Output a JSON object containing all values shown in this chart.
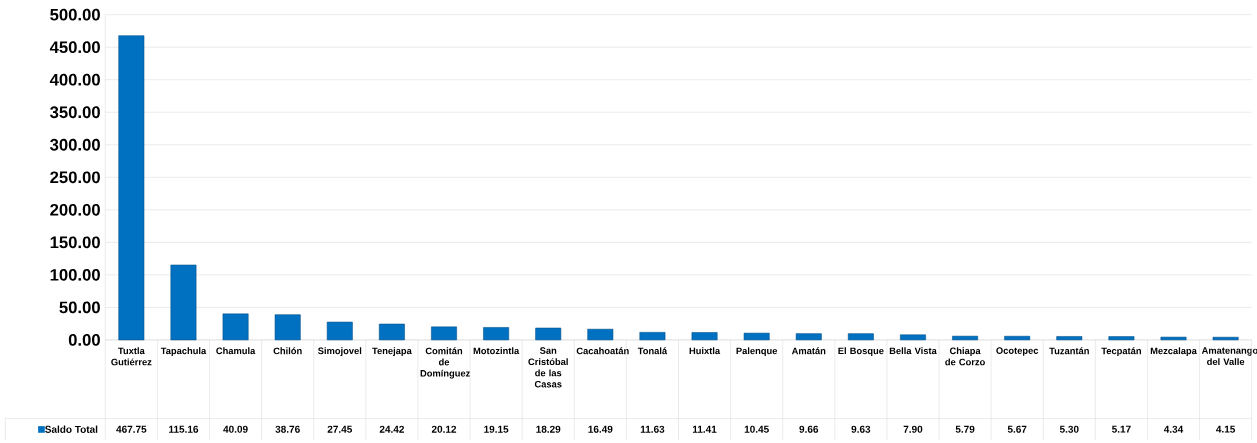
{
  "chart_data": {
    "type": "bar",
    "categories": [
      "Tuxtla Gutiérrez",
      "Tapachula",
      "Chamula",
      "Chilón",
      "Simojovel",
      "Tenejapa",
      "Comitán de Domínguez",
      "Motozintla",
      "San Cristóbal de las Casas",
      "Cacahoatán",
      "Tonalá",
      "Huixtla",
      "Palenque",
      "Amatán",
      "El Bosque",
      "Bella Vista",
      "Chiapa de Corzo",
      "Ocotepec",
      "Tuzantán",
      "Tecpatán",
      "Mezcalapa",
      "Amatenango del Valle"
    ],
    "series": [
      {
        "name": "Saldo Total",
        "color": "#0070c0",
        "values": [
          467.75,
          115.16,
          40.09,
          38.76,
          27.45,
          24.42,
          20.12,
          19.15,
          18.29,
          16.49,
          11.63,
          11.41,
          10.45,
          9.66,
          9.63,
          7.9,
          5.79,
          5.67,
          5.3,
          5.17,
          4.34,
          4.15
        ],
        "value_labels": [
          "467.75",
          "115.16",
          "40.09",
          "38.76",
          "27.45",
          "24.42",
          "20.12",
          "19.15",
          "18.29",
          "16.49",
          "11.63",
          "11.41",
          "10.45",
          "9.66",
          "9.63",
          "7.90",
          "5.79",
          "5.67",
          "5.30",
          "5.17",
          "4.34",
          "4.15"
        ]
      }
    ],
    "ylim": [
      0,
      500
    ],
    "yticks": [
      {
        "value": 0,
        "label": "0.00"
      },
      {
        "value": 50,
        "label": "50.00"
      },
      {
        "value": 100,
        "label": "100.00"
      },
      {
        "value": 150,
        "label": "150.00"
      },
      {
        "value": 200,
        "label": "200.00"
      },
      {
        "value": 250,
        "label": "250.00"
      },
      {
        "value": 300,
        "label": "300.00"
      },
      {
        "value": 350,
        "label": "350.00"
      },
      {
        "value": 400,
        "label": "400.00"
      },
      {
        "value": 450,
        "label": "450.00"
      },
      {
        "value": 500,
        "label": "500.00"
      }
    ],
    "grid": "y",
    "legend": "bottom left"
  }
}
